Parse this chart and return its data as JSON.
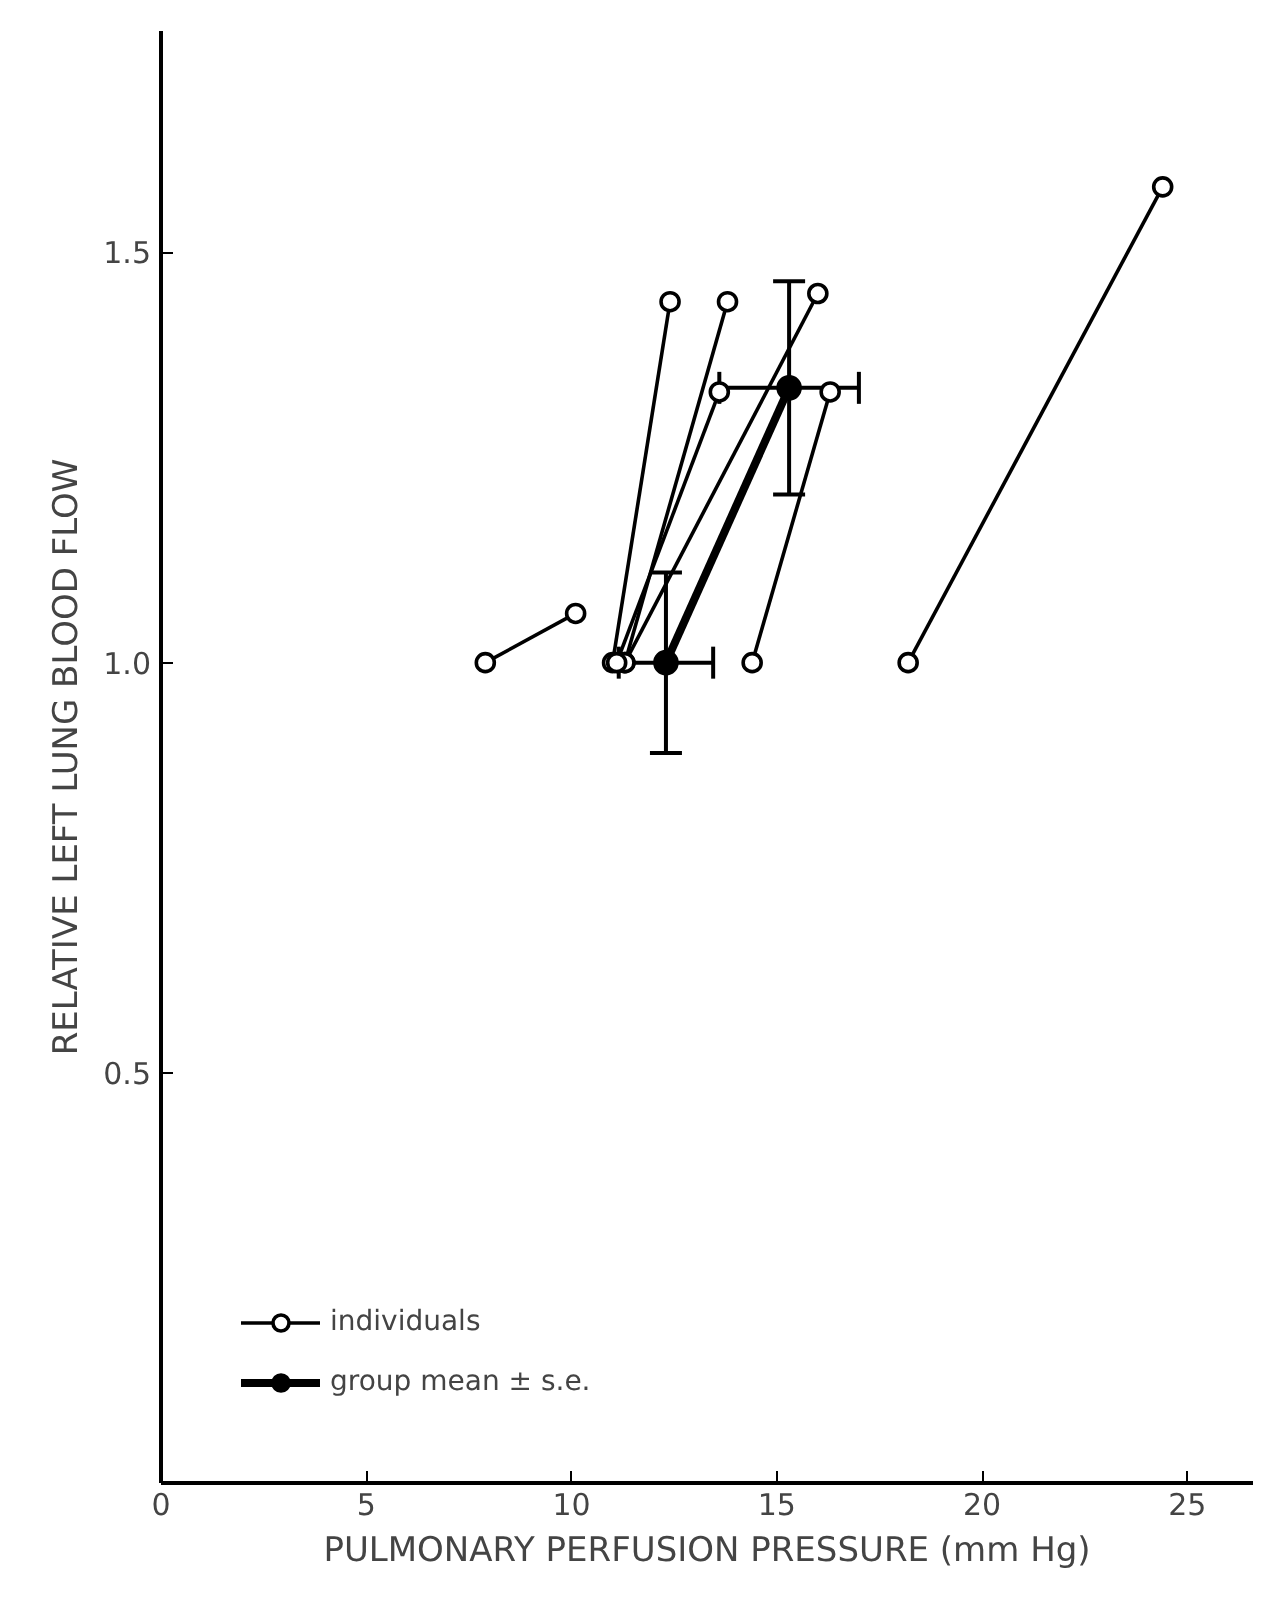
{
  "chart_data": {
    "type": "line",
    "xlabel": "PULMONARY PERFUSION PRESSURE (mm Hg)",
    "ylabel": "RELATIVE LEFT LUNG BLOOD FLOW",
    "xlim": [
      0,
      26.6
    ],
    "ylim": [
      0,
      1.77
    ],
    "xticks": [
      0,
      5,
      10,
      15,
      20,
      25
    ],
    "yticks": [
      {
        "value": 0.5,
        "label": "0.5"
      },
      {
        "value": 1,
        "label": "1.0"
      },
      {
        "value": 1.5,
        "label": "1.5"
      }
    ],
    "marker": "circle",
    "line_style": "solid",
    "grid": false,
    "legend": "bottom left",
    "series": [
      {
        "name": "individuals",
        "color": "#000000",
        "x": [
          7.9,
          10.1
        ],
        "values": [
          1.0,
          1.06
        ]
      },
      {
        "color": "#000000",
        "x": [
          11.0,
          12.4
        ],
        "values": [
          1.0,
          1.44
        ]
      },
      {
        "color": "#000000",
        "x": [
          11.3,
          13.8
        ],
        "values": [
          1.0,
          1.44
        ]
      },
      {
        "color": "#000000",
        "x": [
          11.3,
          16.0
        ],
        "values": [
          1.0,
          1.45
        ]
      },
      {
        "color": "#000000",
        "x": [
          11.1,
          13.6
        ],
        "values": [
          1.0,
          1.33
        ]
      },
      {
        "color": "#000000",
        "x": [
          14.4,
          16.3
        ],
        "values": [
          1.0,
          1.33
        ]
      },
      {
        "color": "#000000",
        "x": [
          18.2,
          24.4
        ],
        "values": [
          1.0,
          1.58
        ]
      },
      {
        "name": "group mean ± s.e.",
        "color": "#000000",
        "x": [
          12.3,
          15.3
        ],
        "values": [
          1.0,
          1.335
        ],
        "errors": [
          0.11,
          0.13
        ],
        "xerrors": [
          1.15,
          1.7
        ]
      }
    ]
  }
}
